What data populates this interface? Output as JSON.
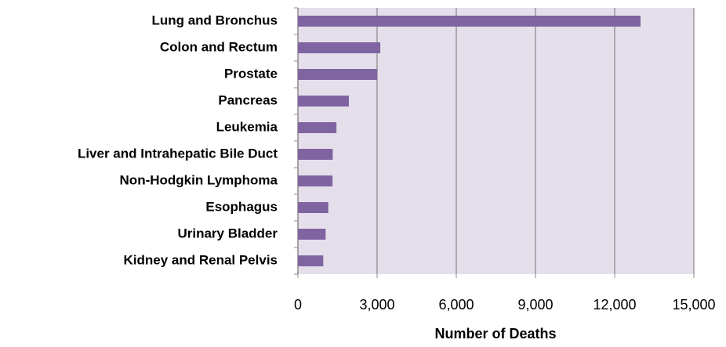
{
  "chart_data": {
    "type": "bar",
    "orientation": "horizontal",
    "categories": [
      "Lung and Bronchus",
      "Colon and Rectum",
      "Prostate",
      "Pancreas",
      "Leukemia",
      "Liver and Intrahepatic Bile Duct",
      "Non-Hodgkin Lymphoma",
      "Esophagus",
      "Urinary Bladder",
      "Kidney and Renal Pelvis"
    ],
    "values": [
      12980,
      3120,
      3000,
      1930,
      1460,
      1320,
      1310,
      1150,
      1050,
      960
    ],
    "color": "#8064a2",
    "x_label": "Number of Deaths",
    "xlim": [
      0,
      15000
    ],
    "xticks": [
      0,
      {
        "value": 3000,
        "label": "3,000"
      },
      {
        "value": 6000,
        "label": "6,000"
      },
      {
        "value": 9000,
        "label": "9,000"
      },
      {
        "value": 12000,
        "label": "12,000"
      },
      {
        "value": 15000,
        "label": "15,000"
      }
    ],
    "grid": true
  }
}
